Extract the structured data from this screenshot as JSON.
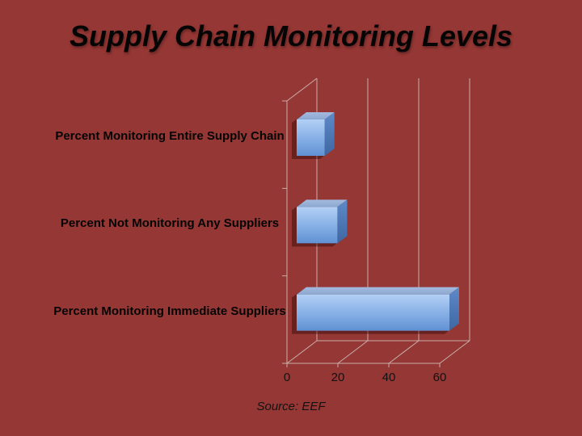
{
  "title": "Supply Chain Monitoring Levels",
  "source": "Source: EEF",
  "colors": {
    "background": "#953734",
    "text": "#050505",
    "gridline": "#c9aeaa",
    "bar_front_top": "#b3d0f5",
    "bar_front_mid": "#84aee5",
    "bar_front_bottom": "#6191d3",
    "bar_top_back": "#a4badf",
    "bar_top_front": "#8ca8d0",
    "bar_side_top": "#5e8ac8",
    "bar_side_bottom": "#3e67a2",
    "shadow": "rgba(30,0,0,0.38)"
  },
  "chart_data": {
    "type": "bar",
    "orientation": "horizontal",
    "style": "3d",
    "title": "Supply Chain Monitoring Levels",
    "categories": [
      "Percent Monitoring Entire Supply Chain",
      "Percent Not Monitoring Any Suppliers",
      "Percent Monitoring Immediate Suppliers"
    ],
    "values": [
      11,
      16,
      60
    ],
    "x_ticks": [
      0,
      20,
      40,
      60
    ],
    "xlim": [
      0,
      60
    ],
    "xlabel": "",
    "ylabel": "",
    "grid": true,
    "legend": false,
    "annotation": "Source: EEF"
  }
}
